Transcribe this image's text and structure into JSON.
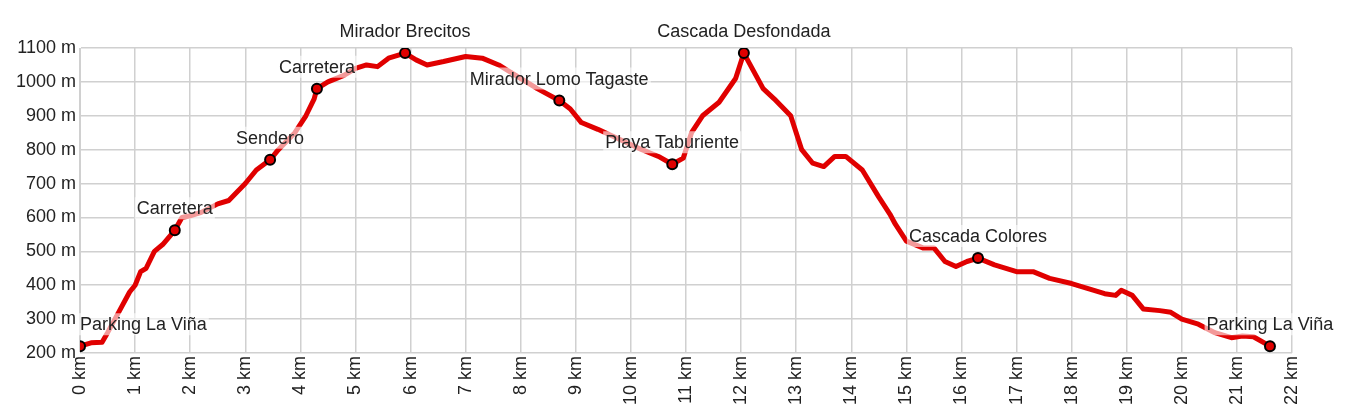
{
  "chart_data": {
    "type": "line",
    "xlim": [
      0,
      22
    ],
    "ylim": [
      200,
      1100
    ],
    "xticks": [
      {
        "value": 0,
        "label": "0 km"
      },
      {
        "value": 1,
        "label": "1 km"
      },
      {
        "value": 2,
        "label": "2 km"
      },
      {
        "value": 3,
        "label": "3 km"
      },
      {
        "value": 4,
        "label": "4 km"
      },
      {
        "value": 5,
        "label": "5 km"
      },
      {
        "value": 6,
        "label": "6 km"
      },
      {
        "value": 7,
        "label": "7 km"
      },
      {
        "value": 8,
        "label": "8 km"
      },
      {
        "value": 9,
        "label": "9 km"
      },
      {
        "value": 10,
        "label": "10 km"
      },
      {
        "value": 11,
        "label": "11 km"
      },
      {
        "value": 12,
        "label": "12 km"
      },
      {
        "value": 13,
        "label": "13 km"
      },
      {
        "value": 14,
        "label": "14 km"
      },
      {
        "value": 15,
        "label": "15 km"
      },
      {
        "value": 16,
        "label": "16 km"
      },
      {
        "value": 17,
        "label": "17 km"
      },
      {
        "value": 18,
        "label": "18 km"
      },
      {
        "value": 19,
        "label": "19 km"
      },
      {
        "value": 20,
        "label": "20 km"
      },
      {
        "value": 21,
        "label": "21 km"
      },
      {
        "value": 22,
        "label": "22 km"
      }
    ],
    "yticks": [
      {
        "value": 200,
        "label": "200 m"
      },
      {
        "value": 300,
        "label": "300 m"
      },
      {
        "value": 400,
        "label": "400 m"
      },
      {
        "value": 500,
        "label": "500 m"
      },
      {
        "value": 600,
        "label": "600 m"
      },
      {
        "value": 700,
        "label": "700 m"
      },
      {
        "value": 800,
        "label": "800 m"
      },
      {
        "value": 900,
        "label": "900 m"
      },
      {
        "value": 1000,
        "label": "1000 m"
      },
      {
        "value": 1100,
        "label": "1100 m"
      }
    ],
    "grid": true,
    "legend": false,
    "line_style": "solid",
    "marker": "none",
    "series": [
      {
        "type": "line",
        "color": "#e00000",
        "x": [
          0,
          0.2,
          0.4,
          0.5,
          0.7,
          0.9,
          1.0,
          1.1,
          1.2,
          1.35,
          1.5,
          1.72,
          1.85,
          2.0,
          2.2,
          2.5,
          2.7,
          3.0,
          3.2,
          3.45,
          3.6,
          3.9,
          4.1,
          4.25,
          4.3,
          4.5,
          4.8,
          5.0,
          5.2,
          5.4,
          5.6,
          5.9,
          6.1,
          6.3,
          6.6,
          7.0,
          7.3,
          7.6,
          8.0,
          8.3,
          8.7,
          8.9,
          9.1,
          9.4,
          9.8,
          10.2,
          10.5,
          10.75,
          10.95,
          11.1,
          11.3,
          11.6,
          11.9,
          12.05,
          12.2,
          12.4,
          12.6,
          12.9,
          13.1,
          13.3,
          13.5,
          13.7,
          13.9,
          14.2,
          14.5,
          14.7,
          14.8,
          15.0,
          15.3,
          15.5,
          15.7,
          15.9,
          16.1,
          16.3,
          16.6,
          17.0,
          17.3,
          17.6,
          18.0,
          18.3,
          18.6,
          18.8,
          18.9,
          19.1,
          19.3,
          19.6,
          19.8,
          20.0,
          20.3,
          20.6,
          20.9,
          21.1,
          21.3,
          21.6
        ],
        "values": [
          220,
          230,
          232,
          260,
          320,
          380,
          400,
          440,
          450,
          500,
          520,
          562,
          600,
          605,
          615,
          640,
          650,
          700,
          740,
          770,
          800,
          850,
          900,
          950,
          980,
          1000,
          1020,
          1040,
          1050,
          1045,
          1070,
          1085,
          1065,
          1050,
          1060,
          1075,
          1070,
          1050,
          1010,
          980,
          945,
          920,
          880,
          860,
          830,
          800,
          780,
          757,
          775,
          850,
          900,
          940,
          1010,
          1085,
          1040,
          980,
          950,
          900,
          800,
          760,
          750,
          780,
          780,
          740,
          660,
          610,
          580,
          530,
          510,
          510,
          470,
          455,
          470,
          480,
          460,
          440,
          440,
          420,
          405,
          390,
          375,
          370,
          385,
          370,
          330,
          325,
          320,
          300,
          285,
          260,
          245,
          250,
          248,
          220
        ]
      },
      {
        "type": "scatter",
        "color": "#e00000",
        "marker": "circle",
        "x": [
          0,
          1.72,
          3.45,
          4.3,
          5.9,
          8.7,
          10.75,
          12.05,
          16.3,
          21.6
        ],
        "values": [
          220,
          562,
          770,
          980,
          1085,
          945,
          757,
          1085,
          480,
          220
        ]
      }
    ],
    "annotations": [
      {
        "text": "Parking La Viña",
        "x": 0,
        "y": 220
      },
      {
        "text": "Carretera",
        "x": 1.72,
        "y": 562
      },
      {
        "text": "Sendero",
        "x": 3.45,
        "y": 770
      },
      {
        "text": "Carretera",
        "x": 4.3,
        "y": 980
      },
      {
        "text": "Mirador Brecitos",
        "x": 5.9,
        "y": 1085
      },
      {
        "text": "Mirador Lomo Tagaste",
        "x": 8.7,
        "y": 945
      },
      {
        "text": "Playa Taburiente",
        "x": 10.75,
        "y": 757
      },
      {
        "text": "Cascada Desfondada",
        "x": 12.05,
        "y": 1085
      },
      {
        "text": "Cascada Colores",
        "x": 16.3,
        "y": 480
      },
      {
        "text": "Parking La Viña",
        "x": 21.6,
        "y": 220
      }
    ]
  }
}
